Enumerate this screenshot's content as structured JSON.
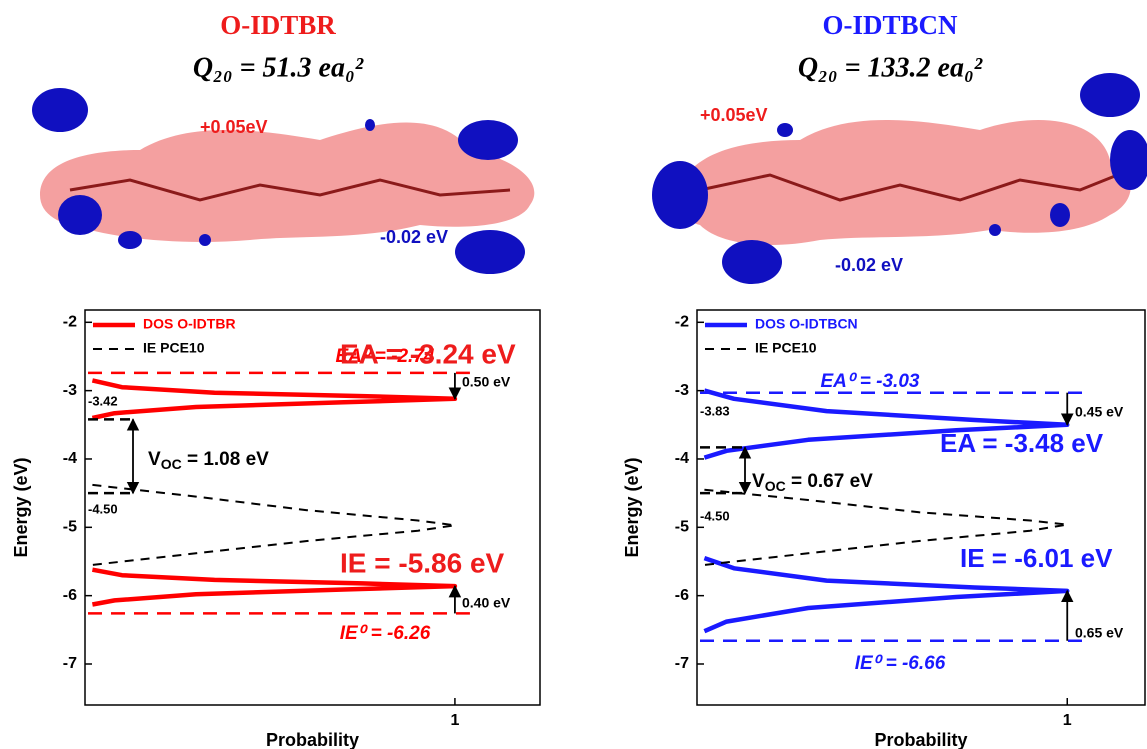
{
  "chart_data": [
    {
      "type": "line",
      "title": "O-IDTBR",
      "subtitle": "Q₂₀ = 51.3 ea₀²",
      "title_color": "#ee1c1c",
      "image_labels": [
        "+0.05eV",
        "-0.02 eV"
      ],
      "y_label": "Energy (eV)",
      "x_label": "Probability",
      "ylim": [
        -7.6,
        -1.82
      ],
      "yticks": [
        -2,
        -3,
        -4,
        -5,
        -6,
        -7
      ],
      "xlim": [
        0,
        1.23
      ],
      "xticks": [
        1
      ],
      "legend": "upper left",
      "series": [
        {
          "name": "DOS O-IDTBR",
          "color": "#ff0000",
          "dashed": false,
          "x": [
            0.02,
            0.1,
            0.35,
            0.75,
            1,
            0.7,
            0.3,
            0.08,
            0.02,
            null,
            0.02,
            0.1,
            0.35,
            0.75,
            1,
            0.7,
            0.3,
            0.08,
            0.02
          ],
          "values": [
            -2.85,
            -2.95,
            -3.03,
            -3.08,
            -3.12,
            -3.17,
            -3.24,
            -3.33,
            -3.4,
            null,
            -5.62,
            -5.7,
            -5.77,
            -5.82,
            -5.86,
            -5.91,
            -5.98,
            -6.07,
            -6.13
          ]
        },
        {
          "name": "IE PCE10",
          "color": "#000000",
          "dashed": true,
          "x": [
            0.02,
            0.3,
            0.6,
            0.9,
            1,
            0.9,
            0.6,
            0.3,
            0.02
          ],
          "values": [
            -4.38,
            -4.55,
            -4.75,
            -4.9,
            -4.97,
            -5.05,
            -5.2,
            -5.38,
            -5.55
          ]
        }
      ],
      "reference_lines": [
        {
          "label": "EA⁰ = -2.74",
          "value": -2.74,
          "gap_label": "0.50 eV"
        },
        {
          "label": "IE⁰ = -6.26",
          "value": -6.26,
          "gap_label": "0.40 eV"
        }
      ],
      "markers": [
        {
          "value": -3.42,
          "label": "-3.42"
        },
        {
          "value": -4.5,
          "label": "-4.50"
        }
      ],
      "voc": {
        "symbol": "V",
        "subscript": "OC",
        "text": " = 1.08 eV"
      },
      "annotations": [
        "EA = -3.24 eV",
        "IE = -5.86 eV"
      ]
    },
    {
      "type": "line",
      "title": "O-IDTBCN",
      "subtitle": "Q₂₀ = 133.2 ea₀²",
      "title_color": "#1a1aff",
      "image_labels": [
        "+0.05eV",
        "-0.02 eV"
      ],
      "y_label": "Energy (eV)",
      "x_label": "Probability",
      "ylim": [
        -7.6,
        -1.82
      ],
      "yticks": [
        -2,
        -3,
        -4,
        -5,
        -6,
        -7
      ],
      "xlim": [
        0,
        1.21
      ],
      "xticks": [
        1
      ],
      "legend": "upper left",
      "series": [
        {
          "name": "DOS O-IDTBCN",
          "color": "#1a1aff",
          "dashed": false,
          "x": [
            0.02,
            0.1,
            0.35,
            0.75,
            1,
            0.7,
            0.3,
            0.08,
            0.02,
            null,
            0.02,
            0.1,
            0.35,
            0.75,
            1,
            0.7,
            0.3,
            0.08,
            0.02
          ],
          "values": [
            -3.0,
            -3.12,
            -3.3,
            -3.43,
            -3.5,
            -3.58,
            -3.72,
            -3.88,
            -3.98,
            null,
            -5.45,
            -5.6,
            -5.78,
            -5.88,
            -5.93,
            -6.02,
            -6.18,
            -6.38,
            -6.52
          ]
        },
        {
          "name": "IE PCE10",
          "color": "#000000",
          "dashed": true,
          "x": [
            0.02,
            0.3,
            0.6,
            0.9,
            1,
            0.9,
            0.6,
            0.3,
            0.02
          ],
          "values": [
            -4.45,
            -4.6,
            -4.78,
            -4.9,
            -4.96,
            -5.05,
            -5.2,
            -5.38,
            -5.55
          ]
        }
      ],
      "reference_lines": [
        {
          "label": "EA⁰ = -3.03",
          "value": -3.03,
          "gap_label": "0.45 eV"
        },
        {
          "label": "IE⁰ = -6.66",
          "value": -6.66,
          "gap_label": "0.65 eV"
        }
      ],
      "markers": [
        {
          "value": -3.83,
          "label": "-3.83"
        },
        {
          "value": -4.5,
          "label": "-4.50"
        }
      ],
      "voc": {
        "symbol": "V",
        "subscript": "OC",
        "text": " = 0.67 eV"
      },
      "annotations": [
        "EA = -3.48 eV",
        "IE = -6.01 eV"
      ]
    }
  ]
}
